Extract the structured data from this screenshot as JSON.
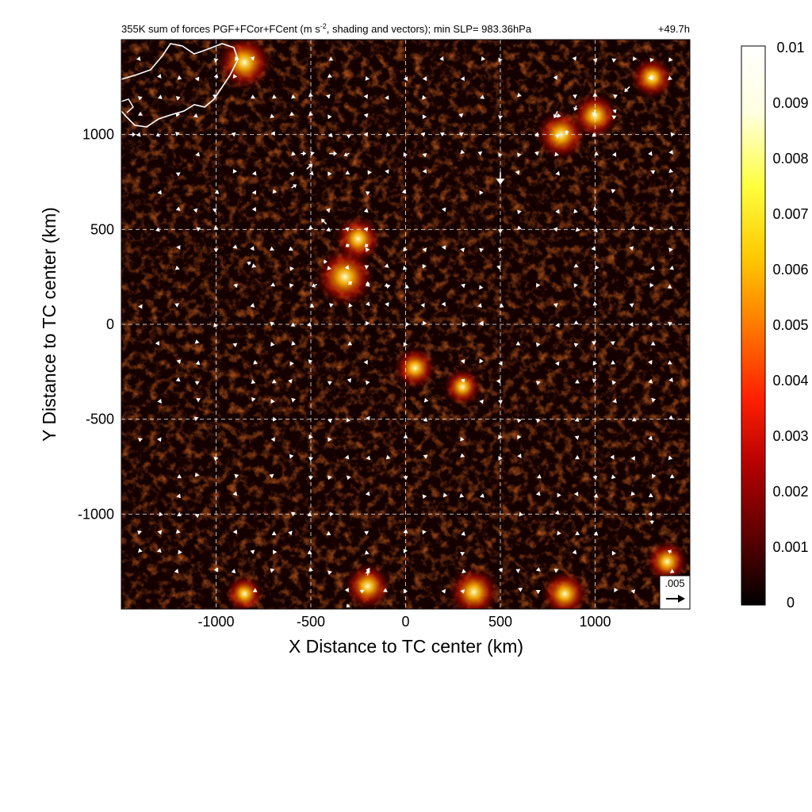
{
  "chart_data": {
    "type": "heatmap",
    "title": "355K sum of forces PGF+FCor+FCent (m s⁻², shading and vectors); min SLP= 983.36hPa",
    "title_main": "355K sum of forces PGF+FCor+FCent (m s",
    "title_exp": "-2",
    "title_rest": ", shading and vectors); min SLP= 983.36hPa",
    "time_label": "+49.7h",
    "xlabel": "X Distance to TC center (km)",
    "ylabel": "Y Distance to TC center (km)",
    "xlim": [
      -1500,
      1500
    ],
    "ylim": [
      -1500,
      1500
    ],
    "x_ticks": [
      -1000,
      -500,
      0,
      500,
      1000
    ],
    "y_ticks": [
      1000,
      500,
      0,
      -500,
      -1000
    ],
    "grid": true,
    "colorbar": {
      "min": 0,
      "max": 0.01,
      "ticks": [
        "0.01",
        "0.009",
        "0.008",
        "0.007",
        "0.006",
        "0.005",
        "0.004",
        "0.003",
        "0.002",
        "0.001",
        "0"
      ],
      "colors": [
        "#000000",
        "#5a0000",
        "#b40000",
        "#ff2000",
        "#ff7a00",
        "#ffc800",
        "#ffff40",
        "#ffffe0",
        "#ffffff"
      ]
    },
    "reference_vector": {
      "label": ".005",
      "value": 0.005
    },
    "hotspots": [
      {
        "x": -320,
        "y": 250,
        "value": 0.0055
      },
      {
        "x": -250,
        "y": 450,
        "value": 0.004
      },
      {
        "x": 820,
        "y": 1000,
        "value": 0.0045
      },
      {
        "x": 1000,
        "y": 1100,
        "value": 0.004
      },
      {
        "x": 1300,
        "y": 1300,
        "value": 0.0035
      },
      {
        "x": -850,
        "y": 1380,
        "value": 0.005
      },
      {
        "x": 50,
        "y": -230,
        "value": 0.0035
      },
      {
        "x": 300,
        "y": -330,
        "value": 0.003
      },
      {
        "x": -200,
        "y": -1380,
        "value": 0.004
      },
      {
        "x": 360,
        "y": -1410,
        "value": 0.0045
      },
      {
        "x": 840,
        "y": -1420,
        "value": 0.004
      },
      {
        "x": -850,
        "y": -1420,
        "value": 0.003
      },
      {
        "x": 1380,
        "y": -1250,
        "value": 0.0035
      }
    ],
    "vectors": [
      {
        "x": -1450,
        "y": 1000,
        "u": 0.0012,
        "v": 0.0
      },
      {
        "x": -1300,
        "y": 1000,
        "u": -0.0008,
        "v": -0.0004
      },
      {
        "x": -550,
        "y": 900,
        "u": 0.0012,
        "v": 0.0
      },
      {
        "x": -400,
        "y": 900,
        "u": 0.0018,
        "v": 0.0
      },
      {
        "x": -300,
        "y": 900,
        "u": -0.0012,
        "v": -0.0006
      },
      {
        "x": -520,
        "y": 820,
        "u": 0.0014,
        "v": 0.0012
      },
      {
        "x": -600,
        "y": 720,
        "u": 0.0012,
        "v": 0.0008
      },
      {
        "x": -420,
        "y": 530,
        "u": -0.0012,
        "v": 0.0012
      },
      {
        "x": -300,
        "y": 420,
        "u": -0.0008,
        "v": -0.0006
      },
      {
        "x": -200,
        "y": 420,
        "u": -0.0008,
        "v": -0.0006
      },
      {
        "x": -430,
        "y": 330,
        "u": 0.0008,
        "v": 0.0
      },
      {
        "x": -470,
        "y": 210,
        "u": -0.0012,
        "v": -0.0006
      },
      {
        "x": -300,
        "y": 210,
        "u": 0.0008,
        "v": 0.0008
      },
      {
        "x": -200,
        "y": 210,
        "u": 0.0,
        "v": 0.0008
      },
      {
        "x": -100,
        "y": 200,
        "u": 0.0,
        "v": 0.0008
      },
      {
        "x": -820,
        "y": 320,
        "u": -0.0008,
        "v": 0.0004
      },
      {
        "x": 500,
        "y": 800,
        "u": 0.0,
        "v": -0.003
      },
      {
        "x": 800,
        "y": 1120,
        "u": -0.0008,
        "v": -0.0016
      },
      {
        "x": 900,
        "y": 1150,
        "u": -0.0004,
        "v": -0.0012
      },
      {
        "x": 1000,
        "y": 1130,
        "u": -0.0004,
        "v": -0.0016
      },
      {
        "x": 850,
        "y": 1020,
        "u": 0.0,
        "v": -0.001
      },
      {
        "x": 1180,
        "y": 1250,
        "u": -0.0012,
        "v": -0.0012
      },
      {
        "x": 1100,
        "y": 1120,
        "u": 0.0006,
        "v": 0.0006
      },
      {
        "x": 700,
        "y": 1000,
        "u": -0.0008,
        "v": -0.0004
      },
      {
        "x": -200,
        "y": -1320,
        "u": 0.0,
        "v": 0.0012
      },
      {
        "x": -230,
        "y": -1400,
        "u": 0.0,
        "v": -0.0008
      },
      {
        "x": -300,
        "y": -1480,
        "u": -0.0006,
        "v": -0.0006
      },
      {
        "x": 1400,
        "y": -1200,
        "u": -0.0008,
        "v": 0.0004
      },
      {
        "x": 1300,
        "y": -1040,
        "u": 0.0,
        "v": -0.0006
      },
      {
        "x": 400,
        "y": 0,
        "u": 0.0004,
        "v": 0.0006
      },
      {
        "x": 300,
        "y": -300,
        "u": 0.0006,
        "v": 0.0006
      }
    ]
  }
}
